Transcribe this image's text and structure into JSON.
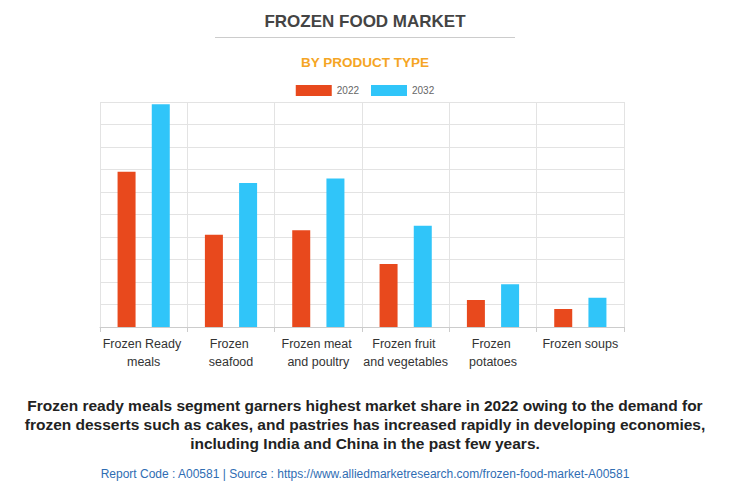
{
  "chart_data": {
    "type": "bar",
    "title": "FROZEN FOOD MARKET",
    "subtitle": "BY PRODUCT TYPE",
    "categories": [
      "Frozen Ready meals",
      "Frozen seafood",
      "Frozen meat and poultry",
      "Frozen fruit and vegetables",
      "Frozen potatoes",
      "Frozen soups"
    ],
    "series": [
      {
        "name": "2022",
        "color": "#e8491d",
        "values": [
          69,
          41,
          43,
          28,
          12,
          8
        ]
      },
      {
        "name": "2032",
        "color": "#30c5f9",
        "values": [
          99,
          64,
          66,
          45,
          19,
          13
        ]
      }
    ],
    "ylim": [
      0,
      100
    ],
    "yticks": [
      0,
      10,
      20,
      30,
      40,
      50,
      60,
      70,
      80,
      90,
      100
    ],
    "grid": true,
    "legend": "top",
    "tick_labels": "x",
    "annotations": [
      "Frozen ready meals segment garners highest market share in 2022 owing to the demand for frozen desserts such as cakes, and pastries has increased rapidly in developing economies, including India and China in the past few years.",
      "Report Code : A00581  |  Source : https://www.alliedmarketresearch.com/frozen-food-market-A00581"
    ]
  }
}
